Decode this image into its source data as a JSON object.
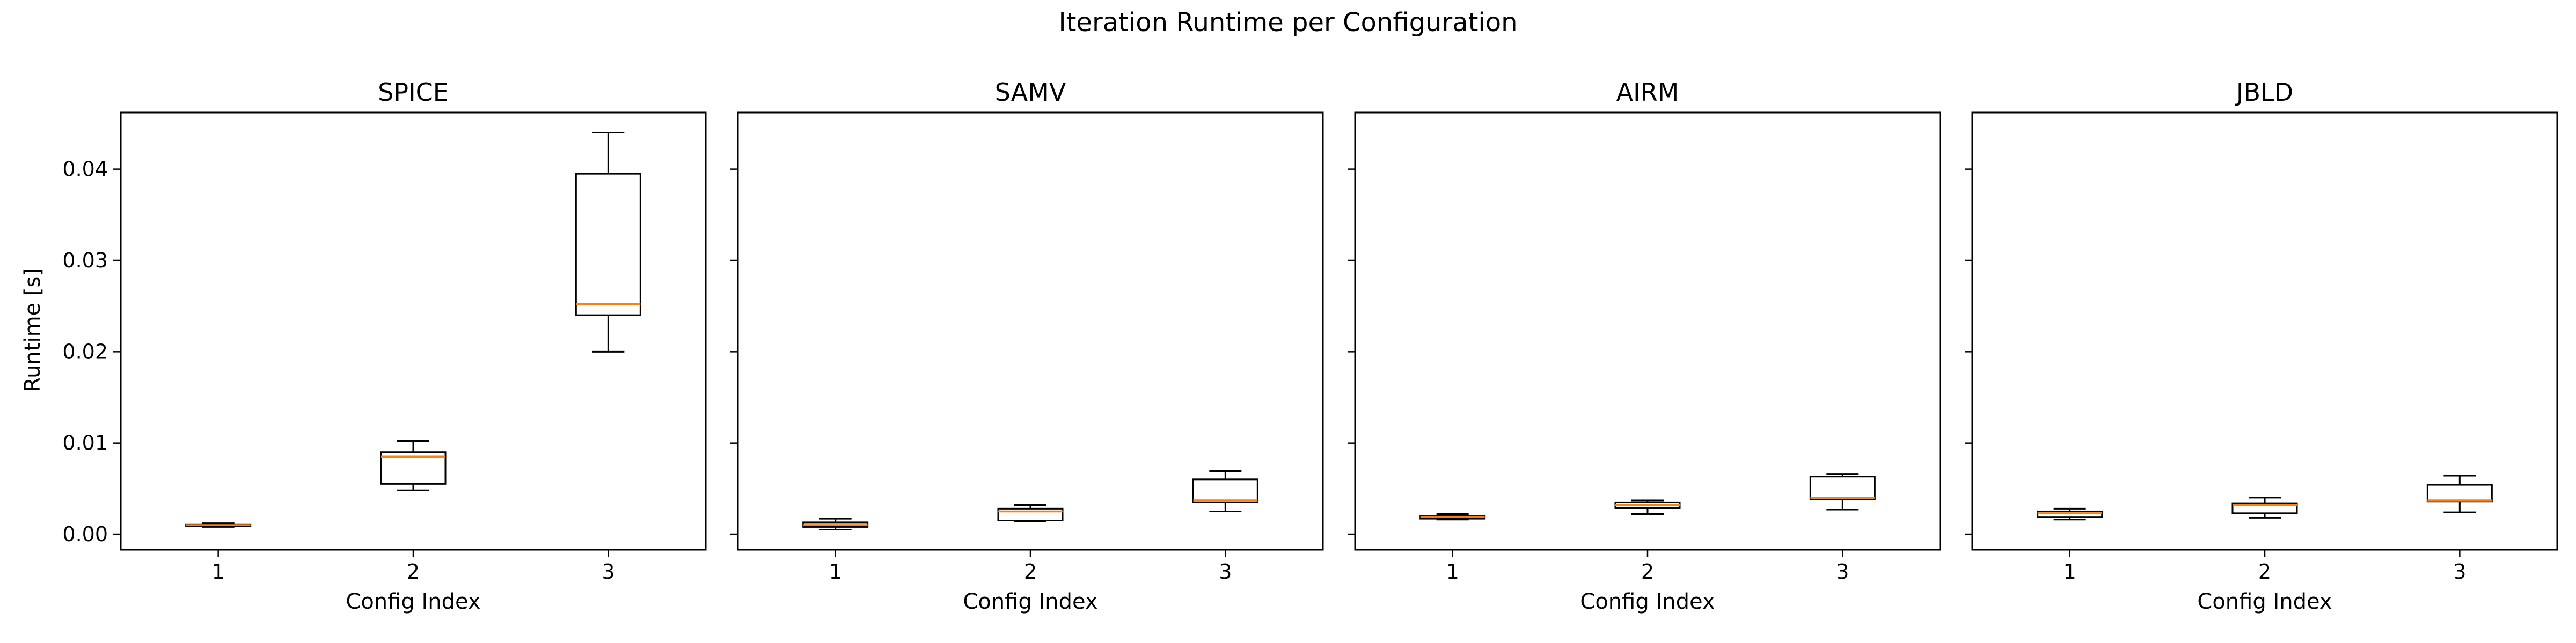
{
  "chart_data": {
    "type": "boxplot",
    "title": "Iteration Runtime per Configuration",
    "ylabel": "Runtime [s]",
    "xlabel": "Config Index",
    "ylim": [
      -0.0017,
      0.0462
    ],
    "yticks": [
      0.0,
      0.01,
      0.02,
      0.03,
      0.04
    ],
    "ytick_labels": [
      "0.00",
      "0.01",
      "0.02",
      "0.03",
      "0.04"
    ],
    "categories": [
      "1",
      "2",
      "3"
    ],
    "sharey": true,
    "median_color": "#ff7f0e",
    "panels": [
      {
        "name": "SPICE",
        "boxes": [
          {
            "category": "1",
            "whislo": 0.0008,
            "q1": 0.0009,
            "med": 0.001,
            "q3": 0.0011,
            "whishi": 0.0012
          },
          {
            "category": "2",
            "whislo": 0.0048,
            "q1": 0.0055,
            "med": 0.0085,
            "q3": 0.009,
            "whishi": 0.0102
          },
          {
            "category": "3",
            "whislo": 0.02,
            "q1": 0.024,
            "med": 0.0252,
            "q3": 0.0395,
            "whishi": 0.044
          }
        ]
      },
      {
        "name": "SAMV",
        "boxes": [
          {
            "category": "1",
            "whislo": 0.0005,
            "q1": 0.0008,
            "med": 0.001,
            "q3": 0.0013,
            "whishi": 0.0017
          },
          {
            "category": "2",
            "whislo": 0.0014,
            "q1": 0.0015,
            "med": 0.0025,
            "q3": 0.0028,
            "whishi": 0.0032
          },
          {
            "category": "3",
            "whislo": 0.0025,
            "q1": 0.0035,
            "med": 0.0037,
            "q3": 0.006,
            "whishi": 0.0069
          }
        ]
      },
      {
        "name": "AIRM",
        "boxes": [
          {
            "category": "1",
            "whislo": 0.0016,
            "q1": 0.0017,
            "med": 0.0019,
            "q3": 0.002,
            "whishi": 0.0022
          },
          {
            "category": "2",
            "whislo": 0.0022,
            "q1": 0.0029,
            "med": 0.0032,
            "q3": 0.0035,
            "whishi": 0.0037
          },
          {
            "category": "3",
            "whislo": 0.0027,
            "q1": 0.0038,
            "med": 0.004,
            "q3": 0.0063,
            "whishi": 0.0066
          }
        ]
      },
      {
        "name": "JBLD",
        "boxes": [
          {
            "category": "1",
            "whislo": 0.0016,
            "q1": 0.0019,
            "med": 0.0023,
            "q3": 0.0025,
            "whishi": 0.0028
          },
          {
            "category": "2",
            "whislo": 0.0018,
            "q1": 0.0023,
            "med": 0.0032,
            "q3": 0.0034,
            "whishi": 0.004
          },
          {
            "category": "3",
            "whislo": 0.0024,
            "q1": 0.0036,
            "med": 0.0037,
            "q3": 0.0054,
            "whishi": 0.0064
          }
        ]
      }
    ]
  }
}
